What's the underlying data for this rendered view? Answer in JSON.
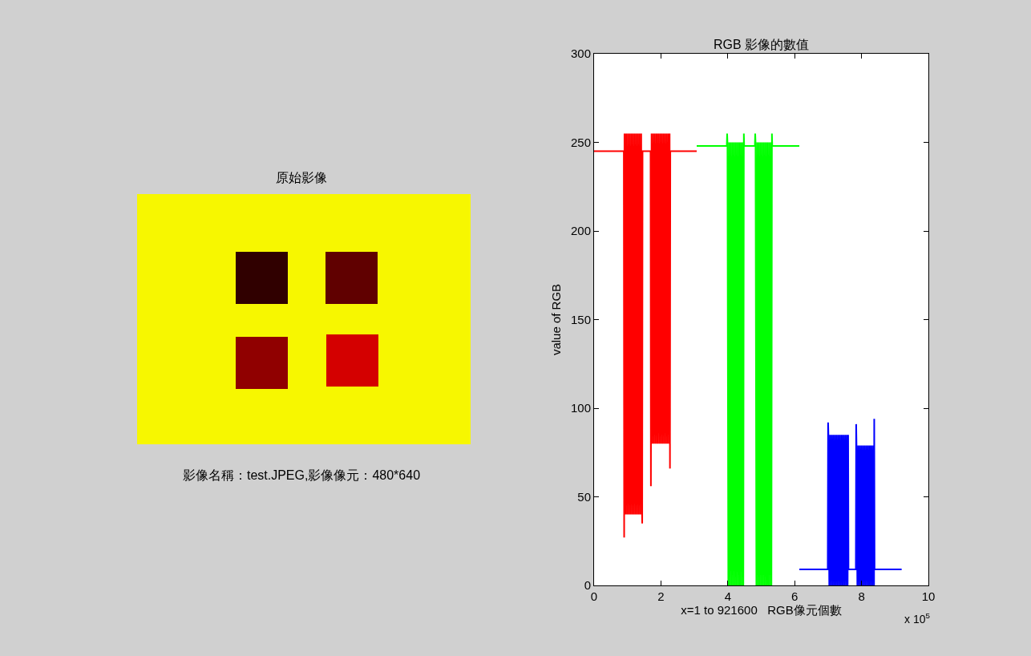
{
  "chart_data": [
    {
      "type": "other",
      "title": "原始影像",
      "annotations": [
        "影像名稱：test.JPEG,影像像元：480*640"
      ]
    },
    {
      "type": "line",
      "title": "RGB 影像的數值",
      "xlabel": "x=1 to 921600   RGB像元個數",
      "ylabel": "value of RGB",
      "annotations": [
        "x 10$^{5}$"
      ],
      "xlim": [
        0,
        10
      ],
      "xticks": [
        0,
        2,
        4,
        6,
        8,
        10
      ],
      "ylim": [
        0,
        300
      ],
      "yticks": [
        0,
        50,
        100,
        150,
        200,
        250,
        300
      ],
      "series": [
        {
          "color": "#ff0000",
          "x": [
            0,
            0.89,
            0.9,
            0.91,
            0.935,
            0.96,
            0.985,
            1.01,
            1.035,
            1.06,
            1.085,
            1.11,
            1.135,
            1.16,
            1.185,
            1.21,
            1.235,
            1.26,
            1.285,
            1.31,
            1.335,
            1.36,
            1.385,
            1.41,
            1.435,
            1.44,
            1.45,
            1.69,
            1.7,
            1.72,
            1.745,
            1.77,
            1.795,
            1.82,
            1.845,
            1.87,
            1.895,
            1.92,
            1.945,
            1.97,
            1.995,
            2.02,
            2.045,
            2.07,
            2.095,
            2.12,
            2.145,
            2.17,
            2.195,
            2.22,
            2.245,
            2.26,
            2.27,
            2.28,
            3.07
          ],
          "values": [
            245,
            245,
            27,
            255,
            40,
            255,
            40,
            255,
            40,
            255,
            40,
            255,
            40,
            255,
            40,
            255,
            40,
            255,
            40,
            255,
            40,
            255,
            40,
            255,
            40,
            35,
            245,
            245,
            56,
            255,
            80,
            255,
            80,
            255,
            80,
            255,
            80,
            255,
            80,
            255,
            80,
            255,
            80,
            255,
            80,
            255,
            80,
            255,
            80,
            255,
            80,
            255,
            66,
            245,
            245
          ]
        },
        {
          "color": "#00ff00",
          "x": [
            3.07,
            3.97,
            3.98,
            3.99,
            4.015,
            4.04,
            4.065,
            4.09,
            4.115,
            4.14,
            4.165,
            4.19,
            4.215,
            4.24,
            4.265,
            4.29,
            4.315,
            4.34,
            4.365,
            4.39,
            4.415,
            4.44,
            4.465,
            4.48,
            4.49,
            4.81,
            4.82,
            4.83,
            4.855,
            4.88,
            4.905,
            4.93,
            4.955,
            4.98,
            5.005,
            5.03,
            5.055,
            5.08,
            5.105,
            5.13,
            5.155,
            5.18,
            5.205,
            5.23,
            5.255,
            5.28,
            5.305,
            5.32,
            5.33,
            6.14
          ],
          "values": [
            248,
            248,
            255,
            250,
            0,
            250,
            0,
            250,
            0,
            250,
            0,
            250,
            0,
            250,
            0,
            250,
            0,
            250,
            0,
            250,
            0,
            250,
            0,
            255,
            248,
            248,
            255,
            250,
            0,
            250,
            0,
            250,
            0,
            250,
            0,
            250,
            0,
            250,
            0,
            250,
            0,
            250,
            0,
            250,
            0,
            250,
            0,
            255,
            248,
            248
          ]
        },
        {
          "color": "#0000ff",
          "x": [
            6.14,
            6.99,
            7.0,
            7.01,
            7.035,
            7.06,
            7.085,
            7.11,
            7.135,
            7.16,
            7.185,
            7.21,
            7.235,
            7.26,
            7.285,
            7.31,
            7.335,
            7.36,
            7.385,
            7.41,
            7.435,
            7.46,
            7.485,
            7.51,
            7.535,
            7.56,
            7.585,
            7.6,
            7.61,
            7.83,
            7.84,
            7.85,
            7.875,
            7.9,
            7.925,
            7.95,
            7.975,
            8.0,
            8.025,
            8.05,
            8.075,
            8.1,
            8.125,
            8.15,
            8.175,
            8.2,
            8.225,
            8.25,
            8.275,
            8.3,
            8.325,
            8.35,
            8.375,
            8.38,
            8.39,
            9.2
          ],
          "values": [
            9,
            9,
            92,
            85,
            0,
            85,
            0,
            85,
            0,
            85,
            0,
            85,
            0,
            85,
            0,
            85,
            0,
            85,
            0,
            85,
            0,
            85,
            0,
            85,
            0,
            85,
            0,
            85,
            9,
            9,
            91,
            79,
            0,
            79,
            0,
            79,
            0,
            79,
            0,
            79,
            0,
            79,
            0,
            79,
            0,
            79,
            0,
            79,
            0,
            79,
            0,
            79,
            0,
            94,
            9,
            9
          ]
        }
      ]
    }
  ]
}
